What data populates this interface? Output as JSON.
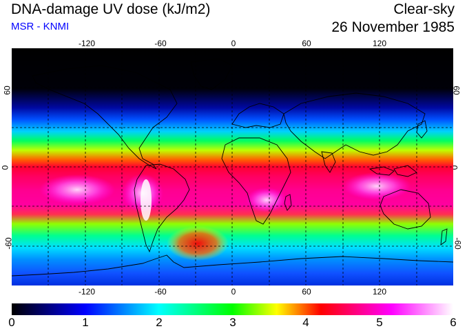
{
  "header": {
    "title": "DNA-damage UV dose (kJ/m2)",
    "subtitle": "MSR - KNMI",
    "sky_condition": "Clear-sky",
    "date": "26 November 1985"
  },
  "map": {
    "projection": "equirectangular",
    "lon_range": [
      -180,
      180
    ],
    "lat_range": [
      -90,
      90
    ],
    "lon_ticks": [
      "-120",
      "-60",
      "0",
      "60",
      "120"
    ],
    "lat_ticks_left": [
      "60",
      "0",
      "-60"
    ],
    "lat_ticks_right": [
      "60",
      "0",
      "-60"
    ],
    "gridlines": "dashed, every 30 degrees",
    "coastlines": true
  },
  "colorbar": {
    "min": 0,
    "max": 6,
    "labels": [
      "0",
      "1",
      "2",
      "3",
      "4",
      "5",
      "6"
    ],
    "stops": [
      "#000000",
      "#0000ff",
      "#00ffff",
      "#00ff00",
      "#ffff00",
      "#ff0000",
      "#ff00ff",
      "#ffffff"
    ]
  },
  "colors": {
    "subtitle": "#0000ff",
    "text": "#000000"
  }
}
